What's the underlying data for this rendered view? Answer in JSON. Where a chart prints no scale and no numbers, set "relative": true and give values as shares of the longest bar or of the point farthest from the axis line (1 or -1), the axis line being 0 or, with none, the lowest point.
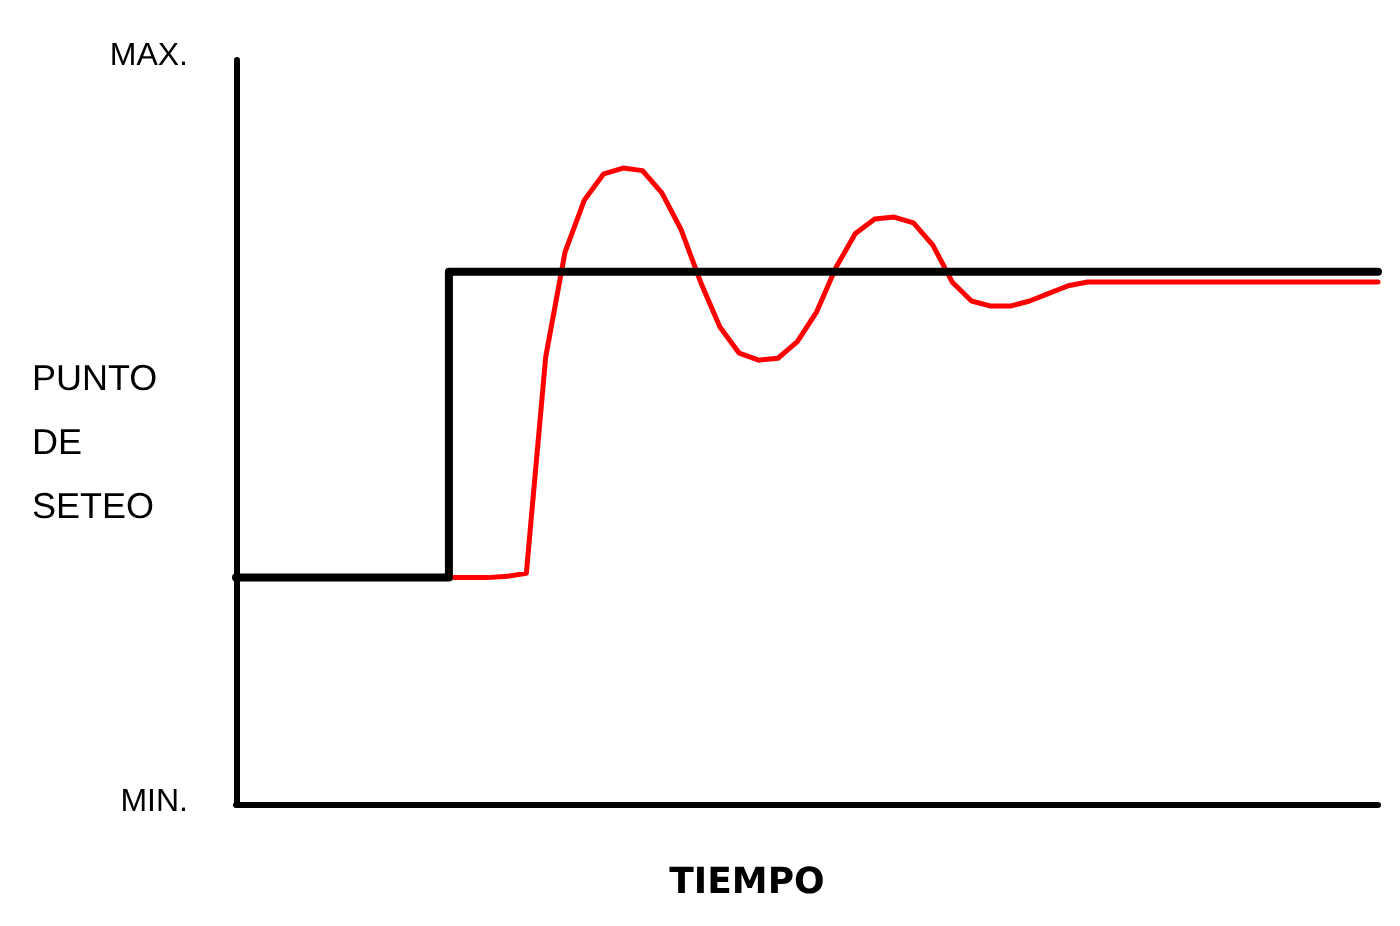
{
  "chart_data": {
    "type": "line",
    "xlabel": "TIEMPO",
    "ylabel": "PUNTO DE SETEO",
    "relative": true,
    "annotations": [
      "MAX.",
      "MIN."
    ],
    "categories": [
      null,
      null,
      null,
      null,
      null,
      null,
      null,
      null,
      null,
      null,
      null,
      null,
      null,
      null,
      null,
      null,
      null,
      null,
      null,
      null,
      null,
      null,
      null,
      null,
      null,
      null,
      null,
      null,
      null,
      null,
      null,
      null,
      null,
      null,
      null,
      null,
      null,
      null,
      null,
      null,
      null,
      null,
      null,
      null,
      null,
      null,
      null,
      null,
      null,
      null,
      null,
      null,
      null,
      null,
      null,
      null,
      null,
      null,
      null,
      null
    ],
    "series": [
      {
        "type": "step",
        "color": "#000000",
        "values": [
          0.356,
          0.356,
          0.356,
          0.356,
          0.356,
          0.356,
          0.356,
          0.356,
          0.356,
          0.356,
          0.356,
          0.837,
          0.837,
          0.837,
          0.837,
          0.837,
          0.837,
          0.837,
          0.837,
          0.837,
          0.837,
          0.837,
          0.837,
          0.837,
          0.837,
          0.837,
          0.837,
          0.837,
          0.837,
          0.837,
          0.837,
          0.837,
          0.837,
          0.837,
          0.837,
          0.837,
          0.837,
          0.837,
          0.837,
          0.837,
          0.837,
          0.837,
          0.837,
          0.837,
          0.837,
          0.837,
          0.837,
          0.837,
          0.837,
          0.837,
          0.837,
          0.837,
          0.837,
          0.837,
          0.837,
          0.837,
          0.837,
          0.837,
          0.837,
          0.837
        ]
      },
      {
        "color": "#ff0000",
        "values": [
          null,
          null,
          null,
          null,
          null,
          null,
          null,
          null,
          null,
          null,
          null,
          0.356,
          0.356,
          0.356,
          0.358,
          0.363,
          0.703,
          0.868,
          0.95,
          0.991,
          1,
          0.996,
          0.961,
          0.903,
          0.821,
          0.75,
          0.709,
          0.698,
          0.701,
          0.727,
          0.774,
          0.844,
          0.897,
          0.92,
          0.923,
          0.914,
          0.879,
          0.821,
          0.791,
          0.783,
          0.783,
          0.791,
          0.803,
          0.815,
          0.821,
          0.821,
          0.821,
          0.821,
          0.821,
          0.821,
          0.821,
          0.821,
          0.821,
          0.821,
          0.821,
          0.821,
          0.821,
          0.821,
          0.821,
          0.821
        ]
      }
    ],
    "grid": false,
    "line_style": "solid"
  }
}
